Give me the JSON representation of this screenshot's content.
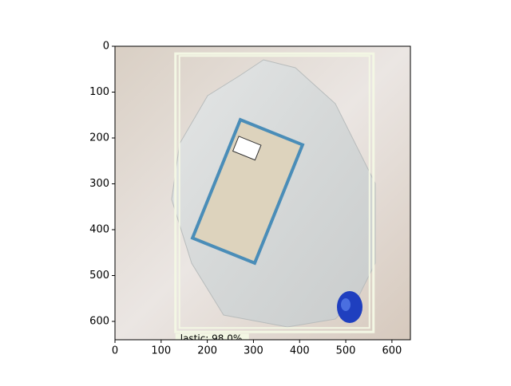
{
  "chart_data": {
    "type": "image",
    "xlim": [
      0,
      640
    ],
    "ylim": [
      640,
      0
    ],
    "xticks": [
      0,
      100,
      200,
      300,
      400,
      500,
      600
    ],
    "yticks": [
      0,
      100,
      200,
      300,
      400,
      500,
      600
    ],
    "boxes": [
      {
        "label": "lastic: 98.0%",
        "x": [
          131,
          560
        ],
        "y": [
          16,
          623
        ],
        "color": "#f3f7e4"
      }
    ]
  }
}
